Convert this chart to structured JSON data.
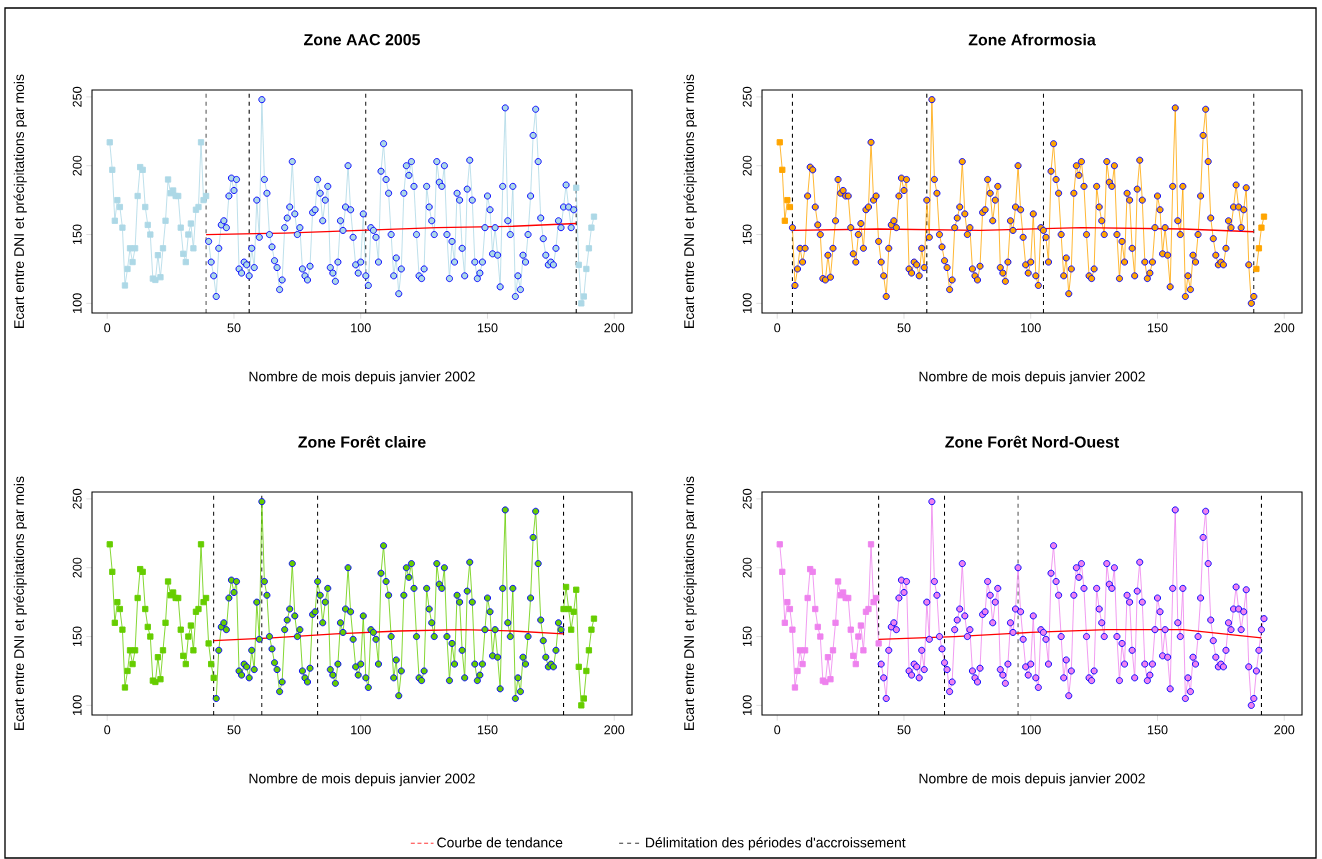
{
  "chart_data": [
    {
      "type": "line",
      "title": "Zone AAC 2005",
      "xlabel": "Nombre de mois depuis janvier 2002",
      "ylabel": "Ecart entre DNI et précipitations par mois",
      "xlim": [
        -6,
        207
      ],
      "ylim": [
        93,
        255
      ],
      "xticks": [
        0,
        50,
        100,
        150,
        200
      ],
      "yticks": [
        100,
        150,
        200,
        250
      ],
      "series": [
        {
          "color": "#add8e6",
          "marker": "square",
          "x": [
            1,
            2,
            3,
            4,
            5,
            6,
            7,
            8,
            9,
            10,
            11,
            12,
            13,
            14,
            15,
            16,
            17,
            18,
            19,
            20,
            21,
            22,
            23,
            24,
            25,
            26,
            27,
            28,
            29,
            30,
            31,
            32,
            33,
            34,
            35,
            36,
            37,
            38,
            39
          ],
          "values": [
            217,
            197,
            160,
            175,
            170,
            155,
            113,
            125,
            140,
            130,
            140,
            178,
            199,
            197,
            170,
            157,
            150,
            118,
            117,
            135,
            119,
            140,
            160,
            190,
            180,
            182,
            178,
            178,
            155,
            136,
            130,
            150,
            158,
            140,
            168,
            170,
            217,
            175,
            178
          ]
        },
        {
          "color": "#add8e6",
          "marker": "circle",
          "x": [
            40,
            41,
            42,
            43,
            44,
            45,
            46,
            47,
            48,
            49,
            50,
            51,
            52,
            53,
            54,
            55,
            56,
            57,
            58,
            59,
            60,
            61,
            62,
            63,
            64,
            65,
            66,
            67,
            68,
            69,
            70,
            71,
            72,
            73,
            74,
            75,
            76,
            77,
            78,
            79,
            80,
            81,
            82,
            83,
            84,
            85,
            86,
            87,
            88,
            89,
            90,
            91,
            92,
            93,
            94,
            95,
            96,
            97,
            98,
            99,
            100,
            101,
            102,
            103,
            104,
            105,
            106,
            107,
            108,
            109,
            110,
            111,
            112,
            113,
            114,
            115,
            116,
            117,
            118,
            119,
            120,
            121,
            122,
            123,
            124,
            125,
            126,
            127,
            128,
            129,
            130,
            131,
            132,
            133,
            134,
            135,
            136,
            137,
            138,
            139,
            140,
            141,
            142,
            143,
            144,
            145,
            146,
            147,
            148,
            149,
            150,
            151,
            152,
            153,
            154,
            155,
            156,
            157,
            158,
            159,
            160,
            161,
            162,
            163,
            164,
            165,
            166,
            167,
            168,
            169,
            170,
            171,
            172,
            173,
            174,
            175,
            176,
            177,
            178,
            179,
            180,
            181,
            182,
            183,
            184
          ],
          "values": [
            145,
            130,
            120,
            105,
            140,
            157,
            160,
            155,
            178,
            191,
            182,
            190,
            125,
            122,
            130,
            128,
            120,
            140,
            126,
            175,
            148,
            248,
            190,
            180,
            150,
            141,
            131,
            126,
            110,
            117,
            155,
            162,
            170,
            203,
            165,
            150,
            155,
            125,
            120,
            117,
            127,
            166,
            168,
            190,
            180,
            160,
            175,
            185,
            126,
            122,
            116,
            130,
            160,
            153,
            170,
            200,
            168,
            148,
            128,
            122,
            130,
            165,
            120,
            113,
            155,
            153,
            148,
            130,
            196,
            216,
            190,
            180,
            150,
            120,
            133,
            107,
            125,
            180,
            200,
            193,
            203,
            185,
            150,
            120,
            118,
            125,
            185,
            170,
            160,
            150,
            203,
            188,
            185,
            200,
            150,
            118,
            145,
            130,
            180,
            175,
            140,
            120,
            183,
            204,
            175,
            130,
            118,
            122,
            130,
            155,
            178,
            168,
            136,
            155,
            135,
            112,
            185,
            242,
            160,
            150,
            185,
            105,
            120,
            110,
            135,
            130,
            150,
            178,
            222,
            241,
            203,
            162,
            147,
            135,
            128,
            130,
            128,
            140,
            160,
            155,
            170,
            186,
            170,
            155,
            168
          ]
        },
        {
          "color": "#add8e6",
          "marker": "square",
          "x": [
            185,
            186,
            187,
            188,
            189,
            190,
            191,
            192
          ],
          "values": [
            184,
            128,
            100,
            105,
            125,
            140,
            155,
            163
          ]
        },
        {
          "color": "#ff0000",
          "x": [
            39,
            70,
            100,
            130,
            160,
            185
          ],
          "values": [
            150,
            151,
            153,
            155,
            156,
            158
          ]
        }
      ],
      "ref_lines": [
        {
          "axis": "x",
          "value": 39,
          "line_style": "dashed"
        },
        {
          "axis": "x",
          "value": 56,
          "line_style": "dashed"
        },
        {
          "axis": "x",
          "value": 102,
          "line_style": "dashed"
        },
        {
          "axis": "x",
          "value": 185,
          "line_style": "dashed"
        }
      ]
    },
    {
      "type": "line",
      "title": "Zone Afrormosia",
      "xlabel": "Nombre de mois depuis janvier 2002",
      "ylabel": "Ecart entre DNI et précipitations par mois",
      "xlim": [
        -6,
        207
      ],
      "ylim": [
        93,
        255
      ],
      "xticks": [
        0,
        50,
        100,
        150,
        200
      ],
      "yticks": [
        100,
        150,
        200,
        250
      ],
      "series": [
        {
          "color": "#ffa500",
          "marker": "square",
          "x": [
            1,
            2,
            3,
            4,
            5
          ],
          "values": [
            217,
            197,
            160,
            175,
            170
          ]
        },
        {
          "color": "#ffa500",
          "marker": "circle",
          "x": [
            6,
            7,
            8,
            9,
            10,
            11,
            12,
            13,
            14,
            15,
            16,
            17,
            18,
            19,
            20,
            21,
            22,
            23,
            24,
            25,
            26,
            27,
            28,
            29,
            30,
            31,
            32,
            33,
            34,
            35,
            36,
            37,
            38,
            39,
            40,
            41,
            42,
            43,
            44,
            45,
            46,
            47,
            48,
            49,
            50,
            51,
            52,
            53,
            54,
            55,
            56,
            57,
            58,
            59,
            60,
            61,
            62,
            63,
            64,
            65,
            66,
            67,
            68,
            69,
            70,
            71,
            72,
            73,
            74,
            75,
            76,
            77,
            78,
            79,
            80,
            81,
            82,
            83,
            84,
            85,
            86,
            87,
            88,
            89,
            90,
            91,
            92,
            93,
            94,
            95,
            96,
            97,
            98,
            99,
            100,
            101,
            102,
            103,
            104,
            105,
            106,
            107,
            108,
            109,
            110,
            111,
            112,
            113,
            114,
            115,
            116,
            117,
            118,
            119,
            120,
            121,
            122,
            123,
            124,
            125,
            126,
            127,
            128,
            129,
            130,
            131,
            132,
            133,
            134,
            135,
            136,
            137,
            138,
            139,
            140,
            141,
            142,
            143,
            144,
            145,
            146,
            147,
            148,
            149,
            150,
            151,
            152,
            153,
            154,
            155,
            156,
            157,
            158,
            159,
            160,
            161,
            162,
            163,
            164,
            165,
            166,
            167,
            168,
            169,
            170,
            171,
            172,
            173,
            174,
            175,
            176,
            177,
            178,
            179,
            180,
            181,
            182,
            183,
            184,
            185,
            186,
            187,
            188
          ],
          "values": [
            155,
            113,
            125,
            140,
            130,
            140,
            178,
            199,
            197,
            170,
            157,
            150,
            118,
            117,
            135,
            119,
            140,
            160,
            190,
            180,
            182,
            178,
            178,
            155,
            136,
            130,
            150,
            158,
            140,
            168,
            170,
            217,
            175,
            178,
            145,
            130,
            120,
            105,
            140,
            157,
            160,
            155,
            178,
            191,
            182,
            190,
            125,
            122,
            130,
            128,
            120,
            140,
            126,
            175,
            148,
            248,
            190,
            180,
            150,
            141,
            131,
            126,
            110,
            117,
            155,
            162,
            170,
            203,
            165,
            150,
            155,
            125,
            120,
            117,
            127,
            166,
            168,
            190,
            180,
            160,
            175,
            185,
            126,
            122,
            116,
            130,
            160,
            153,
            170,
            200,
            168,
            148,
            128,
            122,
            130,
            165,
            120,
            113,
            155,
            153,
            148,
            130,
            196,
            216,
            190,
            180,
            150,
            120,
            133,
            107,
            125,
            180,
            200,
            193,
            203,
            185,
            150,
            120,
            118,
            125,
            185,
            170,
            160,
            150,
            203,
            188,
            185,
            200,
            150,
            118,
            145,
            130,
            180,
            175,
            140,
            120,
            183,
            204,
            175,
            130,
            118,
            122,
            130,
            155,
            178,
            168,
            136,
            155,
            135,
            112,
            185,
            242,
            160,
            150,
            185,
            105,
            120,
            110,
            135,
            130,
            150,
            178,
            222,
            241,
            203,
            162,
            147,
            135,
            128,
            130,
            128,
            140,
            160,
            155,
            170,
            186,
            170,
            155,
            168,
            184,
            128,
            100,
            105
          ]
        },
        {
          "color": "#ffa500",
          "marker": "square",
          "x": [
            189,
            190,
            191,
            192
          ],
          "values": [
            125,
            140,
            155,
            163
          ]
        },
        {
          "color": "#ff0000",
          "x": [
            6,
            40,
            80,
            120,
            160,
            188
          ],
          "values": [
            153,
            154,
            153,
            155,
            154,
            152
          ]
        }
      ],
      "ref_lines": [
        {
          "axis": "x",
          "value": 6,
          "line_style": "dashed"
        },
        {
          "axis": "x",
          "value": 59,
          "line_style": "dashed"
        },
        {
          "axis": "x",
          "value": 105,
          "line_style": "dashed"
        },
        {
          "axis": "x",
          "value": 188,
          "line_style": "dashed"
        }
      ]
    },
    {
      "type": "line",
      "title": "Zone Forêt claire",
      "xlabel": "Nombre de mois depuis janvier 2002",
      "ylabel": "Ecart entre DNI et précipitations par mois",
      "xlim": [
        -6,
        207
      ],
      "ylim": [
        93,
        255
      ],
      "xticks": [
        0,
        50,
        100,
        150,
        200
      ],
      "yticks": [
        100,
        150,
        200,
        250
      ],
      "series": [
        {
          "color": "#66cd00",
          "marker": "square",
          "x": [
            1,
            2,
            3,
            4,
            5,
            6,
            7,
            8,
            9,
            10,
            11,
            12,
            13,
            14,
            15,
            16,
            17,
            18,
            19,
            20,
            21,
            22,
            23,
            24,
            25,
            26,
            27,
            28,
            29,
            30,
            31,
            32,
            33,
            34,
            35,
            36,
            37,
            38,
            39,
            40,
            41,
            42
          ],
          "values": [
            217,
            197,
            160,
            175,
            170,
            155,
            113,
            125,
            140,
            130,
            140,
            178,
            199,
            197,
            170,
            157,
            150,
            118,
            117,
            135,
            119,
            140,
            160,
            190,
            180,
            182,
            178,
            178,
            155,
            136,
            130,
            150,
            158,
            140,
            168,
            170,
            217,
            175,
            178,
            145,
            130,
            120
          ]
        },
        {
          "color": "#66cd00",
          "marker": "circle",
          "x": [
            43,
            44,
            45,
            46,
            47,
            48,
            49,
            50,
            51,
            52,
            53,
            54,
            55,
            56,
            57,
            58,
            59,
            60,
            61,
            62,
            63,
            64,
            65,
            66,
            67,
            68,
            69,
            70,
            71,
            72,
            73,
            74,
            75,
            76,
            77,
            78,
            79,
            80,
            81,
            82,
            83,
            84,
            85,
            86,
            87,
            88,
            89,
            90,
            91,
            92,
            93,
            94,
            95,
            96,
            97,
            98,
            99,
            100,
            101,
            102,
            103,
            104,
            105,
            106,
            107,
            108,
            109,
            110,
            111,
            112,
            113,
            114,
            115,
            116,
            117,
            118,
            119,
            120,
            121,
            122,
            123,
            124,
            125,
            126,
            127,
            128,
            129,
            130,
            131,
            132,
            133,
            134,
            135,
            136,
            137,
            138,
            139,
            140,
            141,
            142,
            143,
            144,
            145,
            146,
            147,
            148,
            149,
            150,
            151,
            152,
            153,
            154,
            155,
            156,
            157,
            158,
            159,
            160,
            161,
            162,
            163,
            164,
            165,
            166,
            167,
            168,
            169,
            170,
            171,
            172,
            173,
            174,
            175,
            176,
            177,
            178,
            179
          ],
          "values": [
            105,
            140,
            157,
            160,
            155,
            178,
            191,
            182,
            190,
            125,
            122,
            130,
            128,
            120,
            140,
            126,
            175,
            148,
            248,
            190,
            180,
            150,
            141,
            131,
            126,
            110,
            117,
            155,
            162,
            170,
            203,
            165,
            150,
            155,
            125,
            120,
            117,
            127,
            166,
            168,
            190,
            180,
            160,
            175,
            185,
            126,
            122,
            116,
            130,
            160,
            153,
            170,
            200,
            168,
            148,
            128,
            122,
            130,
            165,
            120,
            113,
            155,
            153,
            148,
            130,
            196,
            216,
            190,
            180,
            150,
            120,
            133,
            107,
            125,
            180,
            200,
            193,
            203,
            185,
            150,
            120,
            118,
            125,
            185,
            170,
            160,
            150,
            203,
            188,
            185,
            200,
            150,
            118,
            145,
            130,
            180,
            175,
            140,
            120,
            183,
            204,
            175,
            130,
            118,
            122,
            130,
            155,
            178,
            168,
            136,
            155,
            135,
            112,
            185,
            242,
            160,
            150,
            185,
            105,
            120,
            110,
            135,
            130,
            150,
            178,
            222,
            241,
            203,
            162,
            147,
            135,
            128,
            130,
            128,
            140,
            160,
            155
          ]
        },
        {
          "color": "#66cd00",
          "marker": "square",
          "x": [
            180,
            181,
            182,
            183,
            184,
            185,
            186,
            187,
            188,
            189,
            190,
            191,
            192
          ],
          "values": [
            170,
            186,
            170,
            155,
            168,
            184,
            128,
            100,
            105,
            125,
            140,
            155,
            163
          ]
        },
        {
          "color": "#ff0000",
          "x": [
            42,
            65,
            90,
            115,
            140,
            160,
            180
          ],
          "values": [
            147,
            149,
            152,
            154,
            155,
            154,
            152
          ]
        }
      ],
      "ref_lines": [
        {
          "axis": "x",
          "value": 42,
          "line_style": "dashed"
        },
        {
          "axis": "x",
          "value": 61,
          "line_style": "dashed"
        },
        {
          "axis": "x",
          "value": 83,
          "line_style": "dashed"
        },
        {
          "axis": "x",
          "value": 180,
          "line_style": "dashed"
        }
      ]
    },
    {
      "type": "line",
      "title": "Zone Forêt Nord-Ouest",
      "xlabel": "Nombre de mois depuis janvier 2002",
      "ylabel": "Ecart entre DNI et précipitations par mois",
      "xlim": [
        -6,
        207
      ],
      "ylim": [
        93,
        255
      ],
      "xticks": [
        0,
        50,
        100,
        150,
        200
      ],
      "yticks": [
        100,
        150,
        200,
        250
      ],
      "legend": "bottom",
      "series": [
        {
          "color": "#ee82ee",
          "marker": "square",
          "x": [
            1,
            2,
            3,
            4,
            5,
            6,
            7,
            8,
            9,
            10,
            11,
            12,
            13,
            14,
            15,
            16,
            17,
            18,
            19,
            20,
            21,
            22,
            23,
            24,
            25,
            26,
            27,
            28,
            29,
            30,
            31,
            32,
            33,
            34,
            35,
            36,
            37,
            38,
            39,
            40
          ],
          "values": [
            217,
            197,
            160,
            175,
            170,
            155,
            113,
            125,
            140,
            130,
            140,
            178,
            199,
            197,
            170,
            157,
            150,
            118,
            117,
            135,
            119,
            140,
            160,
            190,
            180,
            182,
            178,
            178,
            155,
            136,
            130,
            150,
            158,
            140,
            168,
            170,
            217,
            175,
            178,
            145
          ]
        },
        {
          "color": "#ee82ee",
          "marker": "circle",
          "x": [
            41,
            42,
            43,
            44,
            45,
            46,
            47,
            48,
            49,
            50,
            51,
            52,
            53,
            54,
            55,
            56,
            57,
            58,
            59,
            60,
            61,
            62,
            63,
            64,
            65,
            66,
            67,
            68,
            69,
            70,
            71,
            72,
            73,
            74,
            75,
            76,
            77,
            78,
            79,
            80,
            81,
            82,
            83,
            84,
            85,
            86,
            87,
            88,
            89,
            90,
            91,
            92,
            93,
            94,
            95,
            96,
            97,
            98,
            99,
            100,
            101,
            102,
            103,
            104,
            105,
            106,
            107,
            108,
            109,
            110,
            111,
            112,
            113,
            114,
            115,
            116,
            117,
            118,
            119,
            120,
            121,
            122,
            123,
            124,
            125,
            126,
            127,
            128,
            129,
            130,
            131,
            132,
            133,
            134,
            135,
            136,
            137,
            138,
            139,
            140,
            141,
            142,
            143,
            144,
            145,
            146,
            147,
            148,
            149,
            150,
            151,
            152,
            153,
            154,
            155,
            156,
            157,
            158,
            159,
            160,
            161,
            162,
            163,
            164,
            165,
            166,
            167,
            168,
            169,
            170,
            171,
            172,
            173,
            174,
            175,
            176,
            177,
            178,
            179,
            180,
            181,
            182,
            183,
            184,
            185,
            186,
            187,
            188,
            189,
            190,
            191,
            192
          ],
          "values": [
            130,
            120,
            105,
            140,
            157,
            160,
            155,
            178,
            191,
            182,
            190,
            125,
            122,
            130,
            128,
            120,
            140,
            126,
            175,
            148,
            248,
            190,
            180,
            150,
            141,
            131,
            126,
            110,
            117,
            155,
            162,
            170,
            203,
            165,
            150,
            155,
            125,
            120,
            117,
            127,
            166,
            168,
            190,
            180,
            160,
            175,
            185,
            126,
            122,
            116,
            130,
            160,
            153,
            170,
            200,
            168,
            148,
            128,
            122,
            130,
            165,
            120,
            113,
            155,
            153,
            148,
            130,
            196,
            216,
            190,
            180,
            150,
            120,
            133,
            107,
            125,
            180,
            200,
            193,
            203,
            185,
            150,
            120,
            118,
            125,
            185,
            170,
            160,
            150,
            203,
            188,
            185,
            200,
            150,
            118,
            145,
            130,
            180,
            175,
            140,
            120,
            183,
            204,
            175,
            130,
            118,
            122,
            130,
            155,
            178,
            168,
            136,
            155,
            135,
            112,
            185,
            242,
            160,
            150,
            185,
            105,
            120,
            110,
            135,
            130,
            150,
            178,
            222,
            241,
            203,
            162,
            147,
            135,
            128,
            130,
            128,
            140,
            160,
            155,
            170,
            186,
            170,
            155,
            168,
            184,
            128,
            100,
            105,
            125,
            140,
            155,
            163
          ]
        },
        {
          "name": "Courbe de tendance",
          "color": "#ff0000",
          "x": [
            40,
            70,
            100,
            130,
            160,
            191
          ],
          "values": [
            148,
            150,
            153,
            155,
            155,
            149
          ]
        }
      ],
      "ref_lines": [
        {
          "axis": "x",
          "value": 40,
          "line_style": "dashed",
          "label": "Délimitation des périodes d'accroissement"
        },
        {
          "axis": "x",
          "value": 66,
          "line_style": "dashed"
        },
        {
          "axis": "x",
          "value": 95,
          "line_style": "dashed"
        },
        {
          "axis": "x",
          "value": 191,
          "line_style": "dashed"
        }
      ]
    }
  ]
}
